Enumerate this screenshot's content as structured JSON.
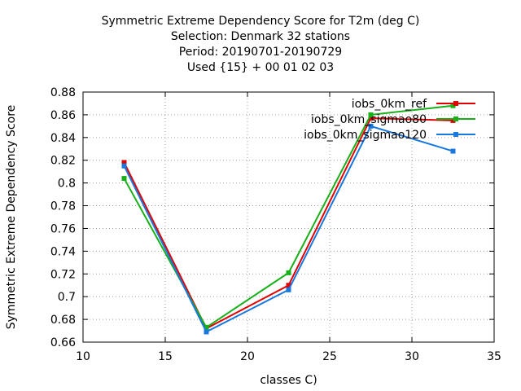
{
  "chart_data": {
    "type": "line",
    "title_lines": [
      "Symmetric Extreme Dependency Score  for T2m (deg C)",
      "Selection: Denmark     32 stations",
      "Period: 20190701-20190729",
      "Used {15} + 00 01 02 03"
    ],
    "xlabel": "classes C)",
    "ylabel": "Symmetric Extreme Dependency Score",
    "xlim": [
      10,
      35
    ],
    "ylim": [
      0.66,
      0.88
    ],
    "xticks": [
      10,
      15,
      20,
      25,
      30,
      35
    ],
    "yticks": [
      0.66,
      0.68,
      0.7,
      0.72,
      0.74,
      0.76,
      0.78,
      0.8,
      0.82,
      0.84,
      0.86,
      0.88
    ],
    "ytick_labels": [
      "0.66",
      "0.68",
      "0.7",
      "0.72",
      "0.74",
      "0.76",
      "0.78",
      "0.8",
      "0.82",
      "0.84",
      "0.86",
      "0.88"
    ],
    "grid": true,
    "legend_position": "top-right",
    "x": [
      12.5,
      17.5,
      22.5,
      27.5,
      32.5
    ],
    "series": [
      {
        "name": "iobs_0km_ref",
        "color": "#e00000",
        "values": [
          0.818,
          0.672,
          0.71,
          0.857,
          0.855
        ]
      },
      {
        "name": "iobs_0km_sigmao80",
        "color": "#18b018",
        "values": [
          0.804,
          0.673,
          0.721,
          0.86,
          0.868
        ]
      },
      {
        "name": "iobs_0km_sigmao120",
        "color": "#1878e0",
        "values": [
          0.815,
          0.669,
          0.706,
          0.85,
          0.828
        ]
      }
    ]
  }
}
